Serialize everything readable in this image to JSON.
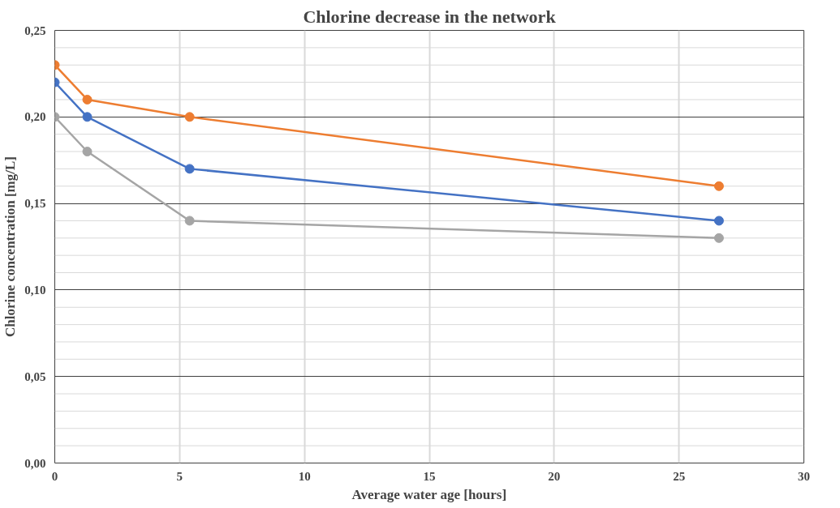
{
  "chart_data": {
    "type": "line",
    "title": "Chlorine decrease in the network",
    "xlabel": "Average water age [hours]",
    "ylabel": "Chlorine concentration [mg/L]",
    "x": [
      0,
      1.3,
      5.4,
      26.6
    ],
    "series": [
      {
        "color": "#ed7d31",
        "values": [
          0.23,
          0.21,
          0.2,
          0.16
        ]
      },
      {
        "color": "#4472c4",
        "values": [
          0.22,
          0.2,
          0.17,
          0.14
        ]
      },
      {
        "color": "#a5a5a5",
        "values": [
          0.2,
          0.18,
          0.14,
          0.13
        ]
      }
    ],
    "xlim": [
      0,
      30
    ],
    "xticks": [
      0,
      5,
      10,
      15,
      20,
      25,
      30
    ],
    "ylim": [
      0,
      0.25
    ],
    "yticks": [
      {
        "value": 0,
        "label": "0,00"
      },
      {
        "value": 0.05,
        "label": "0,05"
      },
      {
        "value": 0.1,
        "label": "0,10"
      },
      {
        "value": 0.15,
        "label": "0,15"
      },
      {
        "value": 0.2,
        "label": "0,20"
      },
      {
        "value": 0.25,
        "label": "0,25"
      }
    ],
    "grid": true,
    "marker": "circle",
    "line_style": "solid"
  }
}
